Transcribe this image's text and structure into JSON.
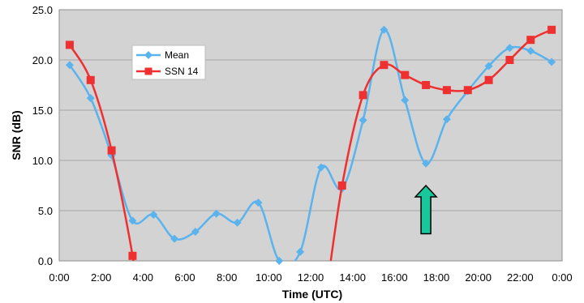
{
  "chart_data": {
    "type": "line",
    "xlabel": "Time (UTC)",
    "ylabel": "SNR (dB)",
    "x_ticks": [
      "0:00",
      "2:00",
      "4:00",
      "6:00",
      "8:00",
      "10:00",
      "12:00",
      "14:00",
      "16:00",
      "18:00",
      "20:00",
      "22:00",
      "0:00"
    ],
    "y_ticks": [
      "0.0",
      "5.0",
      "10.0",
      "15.0",
      "20.0",
      "25.0"
    ],
    "xlim": [
      0,
      24
    ],
    "ylim": [
      0,
      25
    ],
    "grid": "horizontal",
    "legend_position": "upper-left",
    "series": [
      {
        "name": "Mean",
        "color": "#5bb3ee",
        "marker": "diamond",
        "points": [
          [
            0.5,
            19.5
          ],
          [
            1.5,
            16.2
          ],
          [
            2.5,
            10.5
          ],
          [
            3.5,
            4.0
          ],
          [
            4.5,
            4.6
          ],
          [
            5.5,
            2.2
          ],
          [
            6.5,
            2.9
          ],
          [
            7.5,
            4.7
          ],
          [
            8.5,
            3.8
          ],
          [
            9.5,
            5.8
          ],
          [
            10.5,
            0.0
          ],
          [
            11.5,
            0.9
          ],
          [
            12.5,
            9.3
          ],
          [
            13.5,
            7.2
          ],
          [
            14.5,
            14.0
          ],
          [
            15.5,
            23.0
          ],
          [
            16.5,
            16.0
          ],
          [
            17.5,
            9.7
          ],
          [
            18.5,
            14.1
          ],
          [
            19.5,
            16.9
          ],
          [
            20.5,
            19.4
          ],
          [
            21.5,
            21.2
          ],
          [
            22.5,
            20.9
          ],
          [
            23.5,
            19.8
          ]
        ]
      },
      {
        "name": "SSN 14",
        "color": "#ee3030",
        "marker": "square",
        "points": [
          [
            0.5,
            21.5
          ],
          [
            1.5,
            18.0
          ],
          [
            2.5,
            11.0
          ],
          [
            3.5,
            0.5
          ],
          [
            13.5,
            7.5
          ],
          [
            14.5,
            16.5
          ],
          [
            15.5,
            19.5
          ],
          [
            16.5,
            18.5
          ],
          [
            17.5,
            17.5
          ],
          [
            18.5,
            17.0
          ],
          [
            19.5,
            17.0
          ],
          [
            20.5,
            18.0
          ],
          [
            21.5,
            20.0
          ],
          [
            22.5,
            22.0
          ],
          [
            23.5,
            23.0
          ]
        ]
      }
    ],
    "annotation": {
      "shape": "arrow-up",
      "color": "#18c79a",
      "x": 17.5,
      "y_top": 7.5,
      "y_bottom": 2.7
    }
  }
}
